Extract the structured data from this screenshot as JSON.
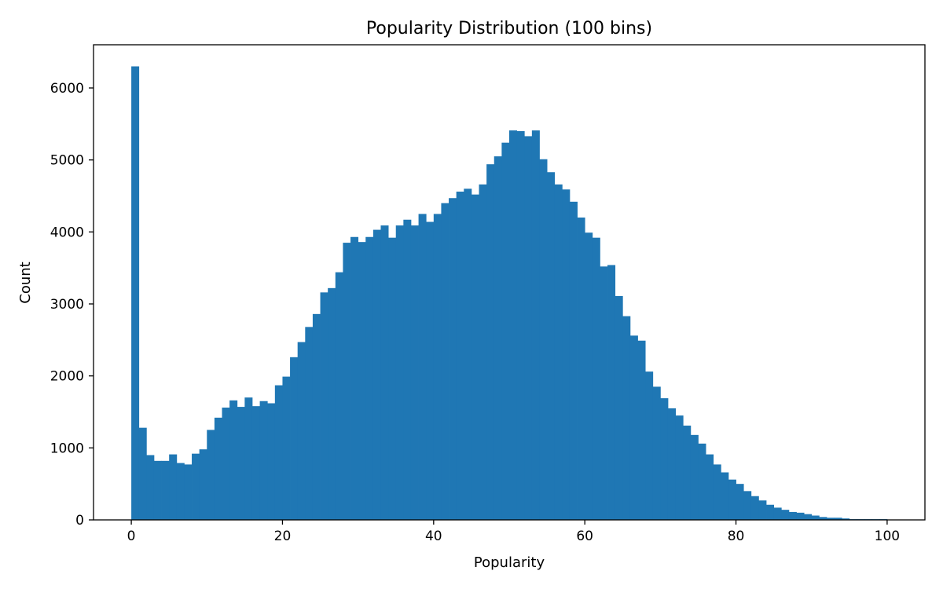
{
  "chart_data": {
    "type": "bar",
    "title": "Popularity Distribution (100 bins)",
    "xlabel": "Popularity",
    "ylabel": "Count",
    "xlim": [
      -5,
      105
    ],
    "ylim": [
      0,
      6600
    ],
    "x_ticks": [
      0,
      20,
      40,
      60,
      80,
      100
    ],
    "y_ticks": [
      0,
      1000,
      2000,
      3000,
      4000,
      5000,
      6000
    ],
    "bin_start": 0,
    "bin_width": 1,
    "bar_color": "#1f77b4",
    "grid": false,
    "values": [
      6300,
      1280,
      900,
      820,
      820,
      910,
      790,
      770,
      920,
      980,
      1250,
      1420,
      1560,
      1660,
      1570,
      1700,
      1580,
      1650,
      1620,
      1870,
      1990,
      2260,
      2470,
      2680,
      2860,
      3160,
      3220,
      3440,
      3850,
      3930,
      3860,
      3930,
      4030,
      4090,
      3920,
      4090,
      4170,
      4090,
      4250,
      4140,
      4250,
      4400,
      4470,
      4560,
      4600,
      4520,
      4660,
      4940,
      5050,
      5240,
      5410,
      5400,
      5330,
      5410,
      5010,
      4830,
      4660,
      4590,
      4420,
      4200,
      3990,
      3920,
      3520,
      3540,
      3110,
      2830,
      2560,
      2490,
      2060,
      1850,
      1690,
      1550,
      1450,
      1310,
      1180,
      1060,
      910,
      770,
      660,
      560,
      500,
      400,
      330,
      270,
      210,
      170,
      140,
      110,
      100,
      80,
      60,
      40,
      30,
      30,
      20,
      10,
      10,
      10,
      10,
      10
    ]
  }
}
